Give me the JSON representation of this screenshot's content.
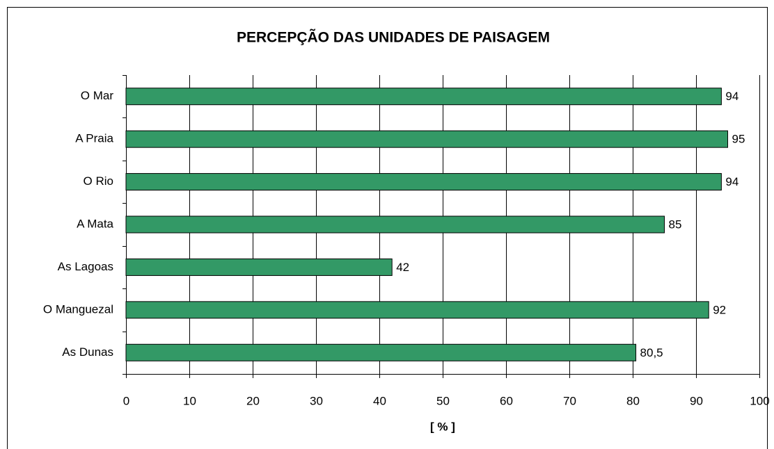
{
  "chart_data": {
    "type": "bar",
    "orientation": "horizontal",
    "title": "PERCEPÇÃO DAS UNIDADES DE PAISAGEM",
    "categories": [
      "O Mar",
      "A Praia",
      "O Rio",
      "A Mata",
      "As Lagoas",
      "O Manguezal",
      "As Dunas"
    ],
    "values": [
      94,
      95,
      94,
      85,
      42,
      92,
      80.5
    ],
    "value_labels": [
      "94",
      "95",
      "94",
      "85",
      "42",
      "92",
      "80,5"
    ],
    "color": "#339966",
    "xlabel": "[ % ]",
    "xlim": [
      0,
      100
    ],
    "xticks": [
      0,
      10,
      20,
      30,
      40,
      50,
      60,
      70,
      80,
      90,
      100
    ],
    "grid": true
  }
}
